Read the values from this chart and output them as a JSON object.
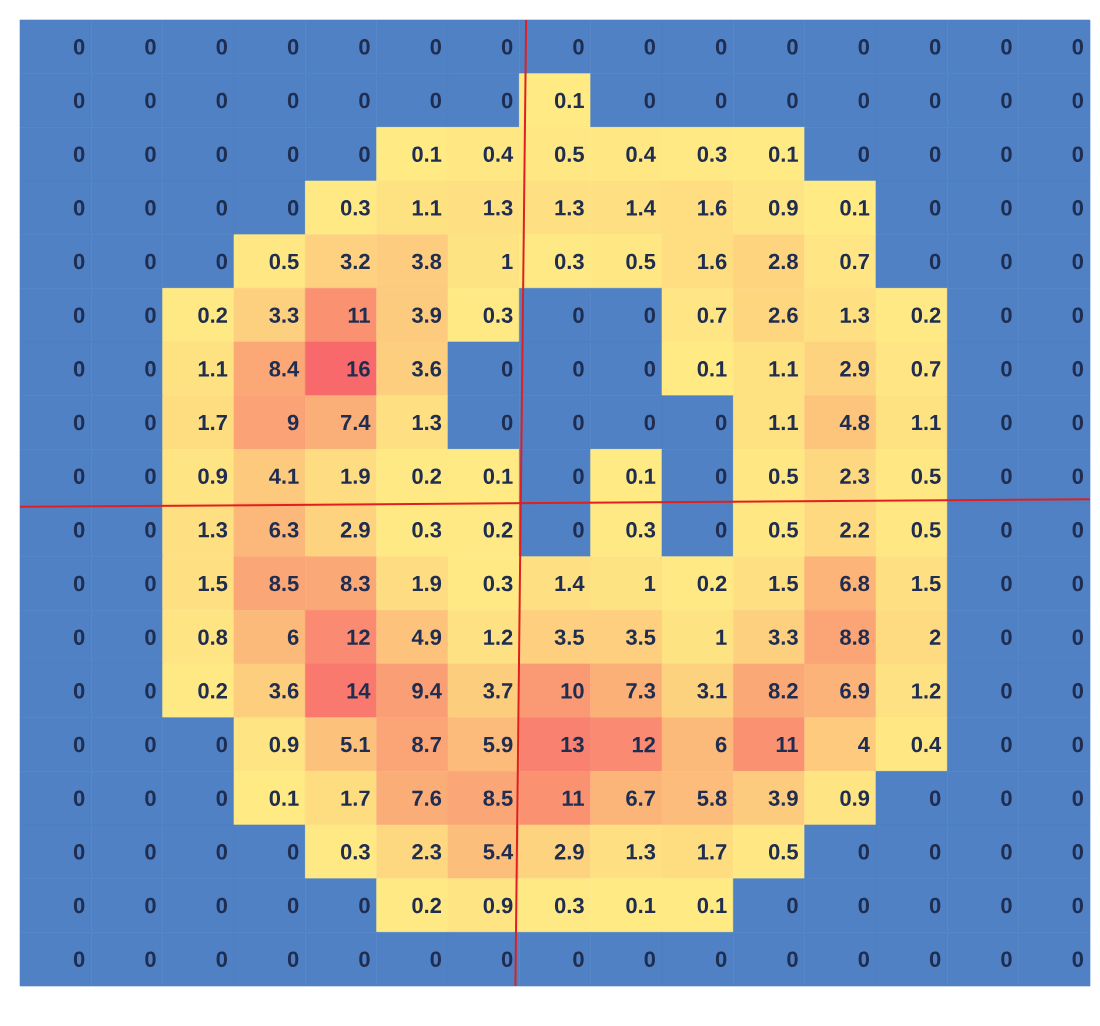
{
  "chart_data": {
    "type": "heatmap",
    "categories": [
      null,
      null,
      null,
      null,
      null,
      null,
      null,
      null,
      null,
      null,
      null,
      null,
      null,
      null,
      null
    ],
    "y_categories": [
      null,
      null,
      null,
      null,
      null,
      null,
      null,
      null,
      null,
      null,
      null,
      null,
      null,
      null,
      null,
      null,
      null,
      null
    ],
    "cells": [
      [
        0,
        0,
        0,
        0,
        0,
        0,
        0,
        0,
        0,
        0,
        0,
        0,
        0,
        0,
        0
      ],
      [
        0,
        0,
        0,
        0,
        0,
        0,
        0,
        0.1,
        0,
        0,
        0,
        0,
        0,
        0,
        0
      ],
      [
        0,
        0,
        0,
        0,
        0,
        0.1,
        0.4,
        0.5,
        0.4,
        0.3,
        0.1,
        0,
        0,
        0,
        0
      ],
      [
        0,
        0,
        0,
        0,
        0.3,
        1.1,
        1.3,
        1.3,
        1.4,
        1.6,
        0.9,
        0.1,
        0,
        0,
        0
      ],
      [
        0,
        0,
        0,
        0.5,
        3.2,
        3.8,
        1,
        0.3,
        0.5,
        1.6,
        2.8,
        0.7,
        0,
        0,
        0
      ],
      [
        0,
        0,
        0.2,
        3.3,
        11,
        3.9,
        0.3,
        0,
        0,
        0.7,
        2.6,
        1.3,
        0.2,
        0,
        0
      ],
      [
        0,
        0,
        1.1,
        8.4,
        16,
        3.6,
        0,
        0,
        0,
        0.1,
        1.1,
        2.9,
        0.7,
        0,
        0
      ],
      [
        0,
        0,
        1.7,
        9,
        7.4,
        1.3,
        0,
        0,
        0,
        0,
        1.1,
        4.8,
        1.1,
        0,
        0
      ],
      [
        0,
        0,
        0.9,
        4.1,
        1.9,
        0.2,
        0.1,
        0,
        0.1,
        0,
        0.5,
        2.3,
        0.5,
        0,
        0
      ],
      [
        0,
        0,
        1.3,
        6.3,
        2.9,
        0.3,
        0.2,
        0,
        0.3,
        0,
        0.5,
        2.2,
        0.5,
        0,
        0
      ],
      [
        0,
        0,
        1.5,
        8.5,
        8.3,
        1.9,
        0.3,
        1.4,
        1,
        0.2,
        1.5,
        6.8,
        1.5,
        0,
        0
      ],
      [
        0,
        0,
        0.8,
        6,
        12,
        4.9,
        1.2,
        3.5,
        3.5,
        1,
        3.3,
        8.8,
        2,
        0,
        0
      ],
      [
        0,
        0,
        0.2,
        3.6,
        14,
        9.4,
        3.7,
        10,
        7.3,
        3.1,
        8.2,
        6.9,
        1.2,
        0,
        0
      ],
      [
        0,
        0,
        0,
        0.9,
        5.1,
        8.7,
        5.9,
        13,
        12,
        6,
        11,
        4,
        0.4,
        0,
        0
      ],
      [
        0,
        0,
        0,
        0.1,
        1.7,
        7.6,
        8.5,
        11,
        6.7,
        5.8,
        3.9,
        0.9,
        0,
        0,
        0
      ],
      [
        0,
        0,
        0,
        0,
        0.3,
        2.3,
        5.4,
        2.9,
        1.3,
        1.7,
        0.5,
        0,
        0,
        0,
        0
      ],
      [
        0,
        0,
        0,
        0,
        0,
        0.2,
        0.9,
        0.3,
        0.1,
        0.1,
        0,
        0,
        0,
        0,
        0
      ],
      [
        0,
        0,
        0,
        0,
        0,
        0,
        0,
        0,
        0,
        0,
        0,
        0,
        0,
        0,
        0
      ]
    ],
    "cell_labels": [
      [
        "0",
        "0",
        "0",
        "0",
        "0",
        "0",
        "0",
        "0",
        "0",
        "0",
        "0",
        "0",
        "0",
        "0",
        "0"
      ],
      [
        "0",
        "0",
        "0",
        "0",
        "0",
        "0",
        "0",
        "0.1",
        "0",
        "0",
        "0",
        "0",
        "0",
        "0",
        "0"
      ],
      [
        "0",
        "0",
        "0",
        "0",
        "0",
        "0.1",
        "0.4",
        "0.5",
        "0.4",
        "0.3",
        "0.1",
        "0",
        "0",
        "0",
        "0"
      ],
      [
        "0",
        "0",
        "0",
        "0",
        "0.3",
        "1.1",
        "1.3",
        "1.3",
        "1.4",
        "1.6",
        "0.9",
        "0.1",
        "0",
        "0",
        "0"
      ],
      [
        "0",
        "0",
        "0",
        "0.5",
        "3.2",
        "3.8",
        "1",
        "0.3",
        "0.5",
        "1.6",
        "2.8",
        "0.7",
        "0",
        "0",
        "0"
      ],
      [
        "0",
        "0",
        "0.2",
        "3.3",
        "11",
        "3.9",
        "0.3",
        "0",
        "0",
        "0.7",
        "2.6",
        "1.3",
        "0.2",
        "0",
        "0"
      ],
      [
        "0",
        "0",
        "1.1",
        "8.4",
        "16",
        "3.6",
        "0",
        "0",
        "0",
        "0.1",
        "1.1",
        "2.9",
        "0.7",
        "0",
        "0"
      ],
      [
        "0",
        "0",
        "1.7",
        "9",
        "7.4",
        "1.3",
        "0",
        "0",
        "0",
        "0",
        "1.1",
        "4.8",
        "1.1",
        "0",
        "0"
      ],
      [
        "0",
        "0",
        "0.9",
        "4.1",
        "1.9",
        "0.2",
        "0.1",
        "0",
        "0.1",
        "0",
        "0.5",
        "2.3",
        "0.5",
        "0",
        "0"
      ],
      [
        "0",
        "0",
        "1.3",
        "6.3",
        "2.9",
        "0.3",
        "0.2",
        "0",
        "0.3",
        "0",
        "0.5",
        "2.2",
        "0.5",
        "0",
        "0"
      ],
      [
        "0",
        "0",
        "1.5",
        "8.5",
        "8.3",
        "1.9",
        "0.3",
        "1.4",
        "1",
        "0.2",
        "1.5",
        "6.8",
        "1.5",
        "0",
        "0"
      ],
      [
        "0",
        "0",
        "0.8",
        "6",
        "12",
        "4.9",
        "1.2",
        "3.5",
        "3.5",
        "1",
        "3.3",
        "8.8",
        "2",
        "0",
        "0"
      ],
      [
        "0",
        "0",
        "0.2",
        "3.6",
        "14",
        "9.4",
        "3.7",
        "10",
        "7.3",
        "3.1",
        "8.2",
        "6.9",
        "1.2",
        "0",
        "0"
      ],
      [
        "0",
        "0",
        "0",
        "0.9",
        "5.1",
        "8.7",
        "5.9",
        "13",
        "12",
        "6",
        "11",
        "4",
        "0.4",
        "0",
        "0"
      ],
      [
        "0",
        "0",
        "0",
        "0.1",
        "1.7",
        "7.6",
        "8.5",
        "11",
        "6.7",
        "5.8",
        "3.9",
        "0.9",
        "0",
        "0",
        "0"
      ],
      [
        "0",
        "0",
        "0",
        "0",
        "0.3",
        "2.3",
        "5.4",
        "2.9",
        "1.3",
        "1.7",
        "0.5",
        "0",
        "0",
        "0",
        "0"
      ],
      [
        "0",
        "0",
        "0",
        "0",
        "0",
        "0.2",
        "0.9",
        "0.3",
        "0.1",
        "0.1",
        "0",
        "0",
        "0",
        "0",
        "0"
      ],
      [
        "0",
        "0",
        "0",
        "0",
        "0",
        "0",
        "0",
        "0",
        "0",
        "0",
        "0",
        "0",
        "0",
        "0",
        "0"
      ]
    ]
  }
}
